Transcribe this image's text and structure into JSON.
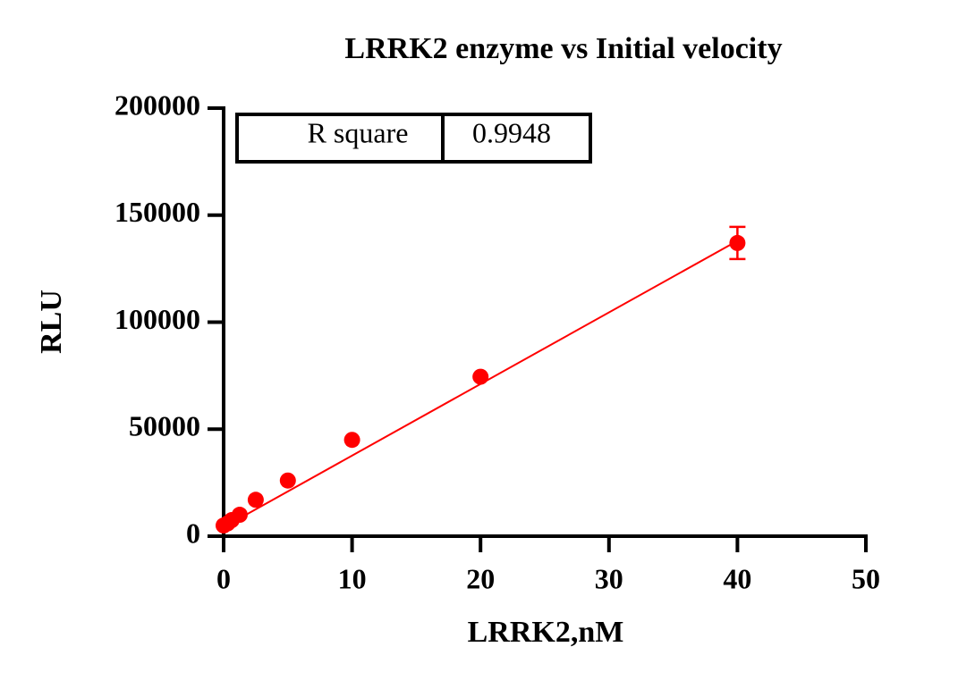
{
  "chart_data": {
    "type": "scatter",
    "title": "LRRK2 enzyme vs Initial velocity",
    "x_label": "LRRK2,nM",
    "y_label": "RLU",
    "xlim": [
      0,
      50
    ],
    "xticks": [
      0,
      10,
      20,
      30,
      40,
      50
    ],
    "ylim": [
      0,
      200000
    ],
    "yticks": [
      0,
      50000,
      100000,
      150000,
      200000
    ],
    "series": [
      {
        "color": "#ff0000",
        "x": [
          0,
          0.3125,
          0.625,
          1.25,
          2.5,
          5,
          10,
          20,
          40
        ],
        "values": [
          5000,
          6000,
          7500,
          10000,
          17000,
          26000,
          45000,
          74500,
          137000
        ],
        "errors": [
          null,
          null,
          null,
          null,
          null,
          null,
          null,
          null,
          7500
        ]
      }
    ],
    "fit_line": {
      "color": "#ff0000",
      "x": [
        0,
        40
      ],
      "values": [
        4200,
        138000
      ]
    },
    "stats_table": {
      "label": "R square",
      "value": "0.9948"
    }
  }
}
